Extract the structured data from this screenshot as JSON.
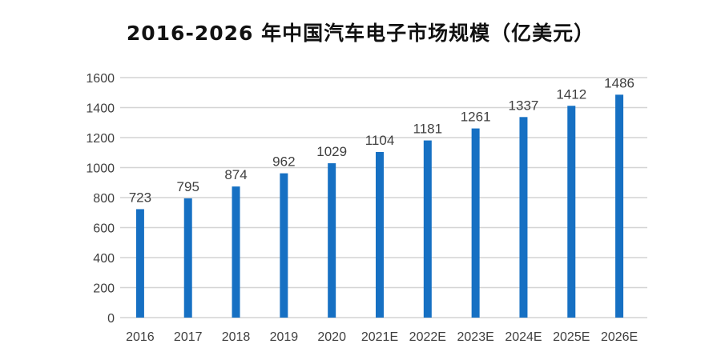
{
  "chart_data": {
    "type": "bar",
    "title": "2016-2026 年中国汽车电子市场规模（亿美元）",
    "categories": [
      "2016",
      "2017",
      "2018",
      "2019",
      "2020",
      "2021E",
      "2022E",
      "2023E",
      "2024E",
      "2025E",
      "2026E"
    ],
    "values": [
      723,
      795,
      874,
      962,
      1029,
      1104,
      1181,
      1261,
      1337,
      1412,
      1486
    ],
    "data_labels": [
      "723",
      "795",
      "874",
      "962",
      "1029",
      "1104",
      "1181",
      "1261",
      "1337",
      "1412",
      "1486"
    ],
    "xlabel": "",
    "ylabel": "",
    "ylim": [
      0,
      1600
    ],
    "yticks": [
      0,
      200,
      400,
      600,
      800,
      1000,
      1200,
      1400,
      1600
    ],
    "grid": true,
    "legend": "none",
    "colors": {
      "bar": "#1670c3",
      "grid": "#d4d4d4",
      "text": "#404040",
      "title": "#111111"
    }
  }
}
